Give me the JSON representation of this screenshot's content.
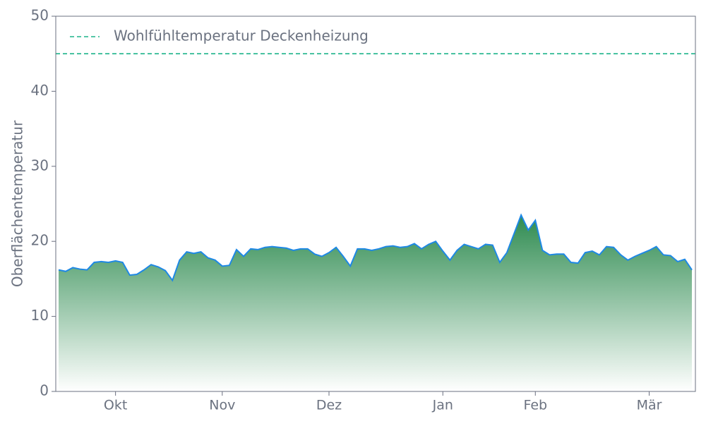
{
  "chart_data": {
    "type": "area",
    "y_label": "Oberflächentemperatur",
    "ylim": [
      0,
      50
    ],
    "yticks": [
      0,
      10,
      20,
      30,
      40,
      50
    ],
    "categories": [
      null,
      null,
      null,
      null,
      null,
      null,
      null,
      null,
      "Okt",
      null,
      null,
      null,
      null,
      null,
      null,
      null,
      null,
      null,
      null,
      null,
      null,
      null,
      null,
      "Nov",
      null,
      null,
      null,
      null,
      null,
      null,
      null,
      null,
      null,
      null,
      null,
      null,
      null,
      null,
      "Dez",
      null,
      null,
      null,
      null,
      null,
      null,
      null,
      null,
      null,
      null,
      null,
      null,
      null,
      null,
      null,
      "Jan",
      null,
      null,
      null,
      null,
      null,
      null,
      null,
      null,
      null,
      null,
      null,
      null,
      "Feb",
      null,
      null,
      null,
      null,
      null,
      null,
      null,
      null,
      null,
      null,
      null,
      null,
      null,
      null,
      null,
      "Mär",
      null,
      null,
      null,
      null,
      null,
      null
    ],
    "series": [
      {
        "color": "#1e88e5",
        "fill": "#2e8b50",
        "values": [
          16.2,
          16.0,
          16.5,
          16.3,
          16.2,
          17.2,
          17.3,
          17.2,
          17.4,
          17.2,
          15.5,
          15.6,
          16.2,
          16.9,
          16.6,
          16.1,
          14.8,
          17.5,
          18.6,
          18.4,
          18.6,
          17.8,
          17.5,
          16.7,
          16.8,
          18.9,
          18.0,
          19.0,
          18.9,
          19.2,
          19.3,
          19.2,
          19.1,
          18.8,
          19.0,
          19.0,
          18.3,
          18.0,
          18.5,
          19.2,
          18.0,
          16.7,
          19.0,
          19.0,
          18.8,
          19.0,
          19.3,
          19.4,
          19.2,
          19.3,
          19.7,
          19.0,
          19.6,
          20.0,
          18.7,
          17.5,
          18.8,
          19.6,
          19.3,
          19.0,
          19.6,
          19.5,
          17.2,
          18.5,
          21.0,
          23.5,
          21.5,
          22.8,
          18.8,
          18.2,
          18.3,
          18.3,
          17.2,
          17.1,
          18.5,
          18.7,
          18.2,
          19.3,
          19.2,
          18.2,
          17.5,
          18.0,
          18.4,
          18.8,
          19.3,
          18.2,
          18.1,
          17.3,
          17.6,
          16.2
        ]
      }
    ],
    "reference_lines": [
      {
        "name": "Wohlfühltemperatur Deckenheizung",
        "value": 45,
        "color": "#1db38a"
      }
    ],
    "legend": "upper left"
  }
}
